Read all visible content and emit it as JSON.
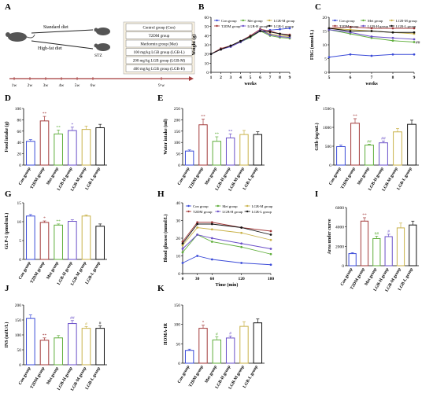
{
  "figure": {
    "panel_A": {
      "label": "A",
      "diet_labels": [
        "Standard diet",
        "High-fat diet"
      ],
      "stz_label": "STZ",
      "groups": [
        "Control group (Con)",
        "T2DM group",
        "Metformin group (Met)",
        "100 mg/kg LGB group (LGB-L)",
        "200 mg/kg LGB group (LGB-M)",
        "400 mg/kg LGB group (LGB-H)"
      ],
      "timeline": [
        "1w",
        "2w",
        "3w",
        "4w",
        "5w",
        "6w",
        "9 w"
      ]
    },
    "colors": {
      "con": "#3b4bd8",
      "t2dm": "#a33a3a",
      "met": "#5fae3a",
      "lgbh": "#6a4fc8",
      "lgbm": "#c9b24a",
      "lgbl": "#111111"
    }
  },
  "chart_data": [
    {
      "panel": "B",
      "type": "line",
      "ylabel": "Weight (g)",
      "xlabel": "weeks",
      "x": [
        1,
        2,
        3,
        4,
        5,
        6,
        7,
        8,
        9
      ],
      "xlim": [
        1,
        9
      ],
      "yticks": [
        0,
        10,
        20,
        30,
        40,
        50,
        60
      ],
      "ylim": [
        0,
        60
      ],
      "legend": [
        "Con group",
        "Met group",
        "LGB-M group",
        "T2DM group",
        "LGB-H group",
        "LGB-L group"
      ],
      "series": [
        {
          "name": "Con group",
          "color": "#3b4bd8",
          "values": [
            20,
            25,
            28,
            33,
            38,
            45,
            46,
            47,
            48
          ]
        },
        {
          "name": "Met group",
          "color": "#5fae3a",
          "values": [
            20,
            25,
            29,
            33,
            38,
            45,
            40,
            38,
            37
          ]
        },
        {
          "name": "LGB-M group",
          "color": "#c9b24a",
          "values": [
            20,
            25,
            29,
            34,
            39,
            46,
            42,
            40,
            39
          ]
        },
        {
          "name": "T2DM group",
          "color": "#a33a3a",
          "values": [
            20,
            26,
            29,
            34,
            40,
            47,
            45,
            42,
            41
          ]
        },
        {
          "name": "LGB-H group",
          "color": "#6a4fc8",
          "values": [
            20,
            25,
            28,
            33,
            39,
            46,
            41,
            39,
            38
          ]
        },
        {
          "name": "LGB-L group",
          "color": "#111111",
          "values": [
            20,
            25,
            29,
            34,
            39,
            45,
            44,
            42,
            40
          ]
        }
      ]
    },
    {
      "panel": "C",
      "type": "line",
      "ylabel": "FBG (mmol/L)",
      "xlabel": "weeks",
      "x": [
        5,
        6,
        7,
        8,
        9
      ],
      "xlim": [
        5,
        9
      ],
      "yticks": [
        0,
        5,
        10,
        15,
        20
      ],
      "ylim": [
        0,
        20
      ],
      "legend": [
        "Con group",
        "Met group",
        "LGB-M group",
        "T2DM group",
        "LGB-H group",
        "LGB-L group"
      ],
      "annotations": [
        "##"
      ],
      "series": [
        {
          "name": "Con group",
          "color": "#3b4bd8",
          "values": [
            5.5,
            6.5,
            6,
            6.5,
            6.5
          ]
        },
        {
          "name": "Met group",
          "color": "#5fae3a",
          "values": [
            15.5,
            14,
            12.5,
            11.5,
            11
          ]
        },
        {
          "name": "LGB-M group",
          "color": "#c9b24a",
          "values": [
            16,
            15.5,
            15,
            14.5,
            14
          ]
        },
        {
          "name": "T2DM group",
          "color": "#a33a3a",
          "values": [
            16,
            16.5,
            16,
            16,
            16
          ]
        },
        {
          "name": "LGB-H group",
          "color": "#6a4fc8",
          "values": [
            15.5,
            14.5,
            13,
            12.5,
            12
          ]
        },
        {
          "name": "LGB-L group",
          "color": "#111111",
          "values": [
            16,
            15,
            15,
            14.5,
            14.5
          ]
        }
      ]
    },
    {
      "panel": "D",
      "type": "bar",
      "ylabel": "Food intake (g)",
      "categories": [
        "Con group",
        "T2DM group",
        "Met group",
        "LGB-H group",
        "LGB-M group",
        "LGB-L group"
      ],
      "values": [
        42,
        78,
        55,
        61,
        63,
        66
      ],
      "errors": [
        3,
        8,
        7,
        6,
        6,
        6
      ],
      "colors": [
        "#3b4bd8",
        "#a33a3a",
        "#5fae3a",
        "#6a4fc8",
        "#c9b24a",
        "#111111"
      ],
      "yticks": [
        0,
        20,
        40,
        60,
        80,
        100
      ],
      "ylim": [
        0,
        100
      ],
      "sig": [
        "",
        "**",
        "**",
        "*",
        "",
        ""
      ]
    },
    {
      "panel": "E",
      "type": "bar",
      "ylabel": "Water intake (ml)",
      "categories": [
        "Con group",
        "T2DM group",
        "Met group",
        "LGB-H group",
        "LGB-M group",
        "LGB-L group"
      ],
      "values": [
        62,
        178,
        105,
        120,
        135,
        135
      ],
      "errors": [
        5,
        25,
        20,
        18,
        18,
        12
      ],
      "colors": [
        "#3b4bd8",
        "#a33a3a",
        "#5fae3a",
        "#6a4fc8",
        "#c9b24a",
        "#111111"
      ],
      "yticks": [
        0,
        50,
        100,
        150,
        200,
        250
      ],
      "ylim": [
        0,
        250
      ],
      "sig": [
        "",
        "**",
        "**",
        "**",
        "",
        ""
      ]
    },
    {
      "panel": "F",
      "type": "bar",
      "ylabel": "GHb (ng/mL)",
      "categories": [
        "Con group",
        "T2DM group",
        "Met group",
        "LGB-H group",
        "LGB-M group",
        "LGB-L group"
      ],
      "values": [
        490,
        1110,
        530,
        590,
        880,
        1080
      ],
      "errors": [
        40,
        120,
        25,
        50,
        90,
        110
      ],
      "colors": [
        "#3b4bd8",
        "#a33a3a",
        "#5fae3a",
        "#6a4fc8",
        "#c9b24a",
        "#111111"
      ],
      "yticks": [
        0,
        500,
        1000,
        1500
      ],
      "ylim": [
        0,
        1500
      ],
      "sig": [
        "",
        "**",
        "##",
        "##",
        "",
        ""
      ]
    },
    {
      "panel": "G",
      "type": "bar",
      "ylabel": "GLP-1 (pmol/mL)",
      "categories": [
        "Con group",
        "T2DM group",
        "Met group",
        "LGB-H group",
        "LGB-M group",
        "LGB-L group"
      ],
      "values": [
        11.5,
        9.8,
        9.1,
        10.1,
        11.5,
        8.8
      ],
      "errors": [
        0.4,
        0.4,
        0.3,
        0.4,
        0.3,
        0.6
      ],
      "colors": [
        "#3b4bd8",
        "#a33a3a",
        "#5fae3a",
        "#6a4fc8",
        "#c9b24a",
        "#111111"
      ],
      "yticks": [
        0,
        5,
        10,
        15
      ],
      "ylim": [
        0,
        15
      ],
      "sig": [
        "",
        "*",
        "**",
        "",
        "",
        ""
      ]
    },
    {
      "panel": "H",
      "type": "line",
      "ylabel": "Blood glucose (mmol/L)",
      "xlabel": "Time (min)",
      "x": [
        0,
        30,
        60,
        120,
        180
      ],
      "xlim": [
        0,
        180
      ],
      "yticks": [
        0,
        10,
        20,
        30,
        40
      ],
      "ylim": [
        0,
        40
      ],
      "legend": [
        "Con group",
        "Met group",
        "LGB-M group",
        "T2DM group",
        "LGB-H group",
        "LGB-L group"
      ],
      "series": [
        {
          "name": "Con group",
          "color": "#3b4bd8",
          "values": [
            6,
            10,
            8,
            6,
            5
          ]
        },
        {
          "name": "Met group",
          "color": "#5fae3a",
          "values": [
            12,
            22,
            18,
            15,
            11
          ]
        },
        {
          "name": "LGB-M group",
          "color": "#c9b24a",
          "values": [
            16,
            26,
            25,
            23,
            19
          ]
        },
        {
          "name": "T2DM group",
          "color": "#a33a3a",
          "values": [
            18,
            29,
            29,
            26,
            24
          ]
        },
        {
          "name": "LGB-H group",
          "color": "#6a4fc8",
          "values": [
            14,
            22,
            20,
            17,
            14
          ]
        },
        {
          "name": "LGB-L group",
          "color": "#111111",
          "values": [
            17,
            28,
            28,
            26,
            22
          ]
        }
      ]
    },
    {
      "panel": "I",
      "type": "bar",
      "ylabel": "Area under curve",
      "categories": [
        "Con group",
        "T2DM group",
        "Met group",
        "LGB-H group",
        "LGB-M group",
        "LGB-L group"
      ],
      "values": [
        1250,
        4600,
        2800,
        3000,
        3900,
        4200
      ],
      "errors": [
        100,
        350,
        250,
        250,
        500,
        400
      ],
      "colors": [
        "#3b4bd8",
        "#a33a3a",
        "#5fae3a",
        "#6a4fc8",
        "#c9b24a",
        "#111111"
      ],
      "yticks": [
        0,
        2000,
        4000,
        6000
      ],
      "ylim": [
        0,
        6000
      ],
      "sig": [
        "",
        "**",
        "##",
        "#",
        "",
        ""
      ]
    },
    {
      "panel": "J",
      "type": "bar",
      "ylabel": "INS (mIU/L)",
      "categories": [
        "Con group",
        "T2DM group",
        "Met group",
        "LGB-H group",
        "LGB-M group",
        "LGB-L group"
      ],
      "values": [
        155,
        82,
        90,
        138,
        122,
        122
      ],
      "errors": [
        12,
        8,
        8,
        10,
        6,
        8
      ],
      "colors": [
        "#3b4bd8",
        "#a33a3a",
        "#5fae3a",
        "#6a4fc8",
        "#c9b24a",
        "#111111"
      ],
      "yticks": [
        0,
        50,
        100,
        150,
        200
      ],
      "ylim": [
        0,
        200
      ],
      "sig": [
        "",
        "**",
        "",
        "##",
        "#",
        "#"
      ]
    },
    {
      "panel": "K",
      "type": "bar",
      "ylabel": "HOMA-IR",
      "categories": [
        "Con group",
        "T2DM group",
        "Met group",
        "LGB-H group",
        "LGB-M group",
        "LGB-L group"
      ],
      "values": [
        33,
        90,
        60,
        65,
        95,
        104
      ],
      "errors": [
        3,
        8,
        8,
        5,
        12,
        10
      ],
      "colors": [
        "#3b4bd8",
        "#a33a3a",
        "#5fae3a",
        "#6a4fc8",
        "#c9b24a",
        "#111111"
      ],
      "yticks": [
        0,
        50,
        100,
        150
      ],
      "ylim": [
        0,
        150
      ],
      "sig": [
        "",
        "*",
        "#",
        "#",
        "",
        ""
      ]
    }
  ]
}
